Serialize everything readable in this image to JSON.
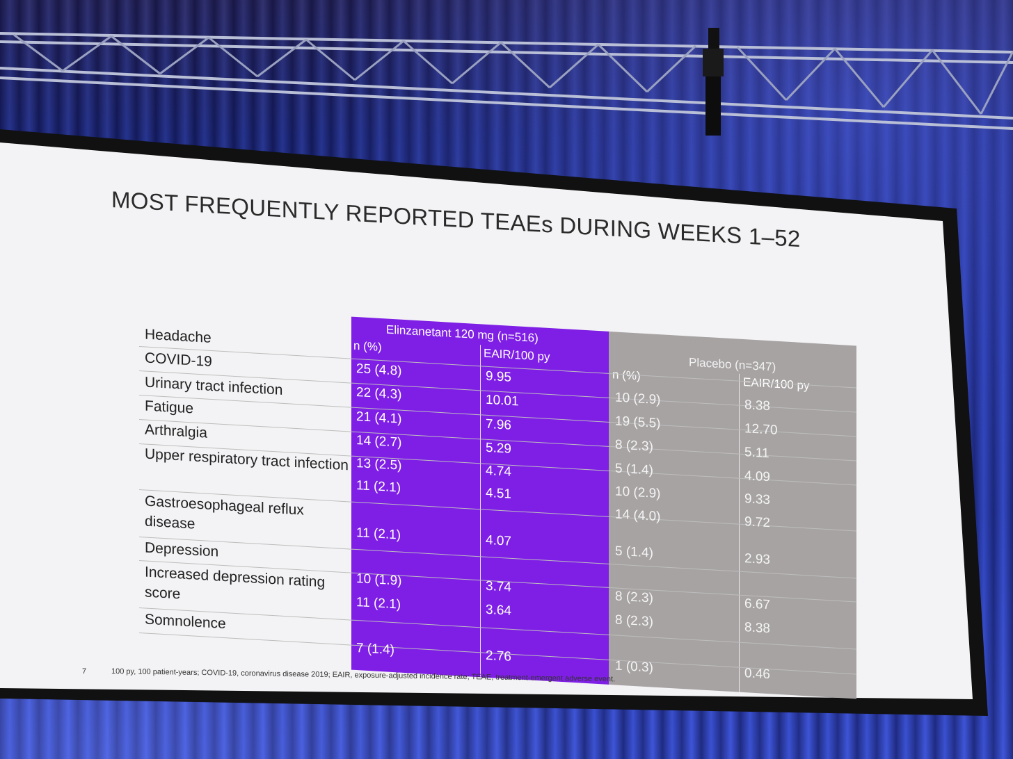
{
  "slide": {
    "title": "MOST FREQUENTLY REPORTED TEAEs DURING WEEKS 1–52",
    "slide_number": "7",
    "footnote": "100 py, 100 patient-years; COVID-19, coronavirus disease 2019; EAIR, exposure-adjusted incidence rate; TEAE, treatment-emergent adverse event."
  },
  "table": {
    "group_elinzanetant": "Elinzanetant 120 mg (n=516)",
    "group_placebo": "Placebo (n=347)",
    "col_n_pct": "n (%)",
    "col_eair": "EAIR/100 py",
    "rows": [
      {
        "event": "Headache",
        "elin_n": "25 (4.8)",
        "elin_eair": "9.95",
        "plac_n": "10 (2.9)",
        "plac_eair": "8.38"
      },
      {
        "event": "COVID-19",
        "elin_n": "22 (4.3)",
        "elin_eair": "10.01",
        "plac_n": "19 (5.5)",
        "plac_eair": "12.70"
      },
      {
        "event": "Urinary tract infection",
        "elin_n": "21 (4.1)",
        "elin_eair": "7.96",
        "plac_n": "8 (2.3)",
        "plac_eair": "5.11"
      },
      {
        "event": "Fatigue",
        "elin_n": "14 (2.7)",
        "elin_eair": "5.29",
        "plac_n": "5 (1.4)",
        "plac_eair": "4.09"
      },
      {
        "event": "Arthralgia",
        "elin_n": "13 (2.5)",
        "elin_eair": "4.74",
        "plac_n": "10 (2.9)",
        "plac_eair": "9.33"
      },
      {
        "event": "Upper respiratory tract infection",
        "elin_n": "11 (2.1)",
        "elin_eair": "4.51",
        "plac_n": "14 (4.0)",
        "plac_eair": "9.72"
      },
      {
        "event": "Gastroesophageal reflux disease",
        "elin_n": "11 (2.1)",
        "elin_eair": "4.07",
        "plac_n": "5 (1.4)",
        "plac_eair": "2.93"
      },
      {
        "event": "Depression",
        "elin_n": "10 (1.9)",
        "elin_eair": "3.74",
        "plac_n": "8 (2.3)",
        "plac_eair": "6.67"
      },
      {
        "event": "Increased depression rating score",
        "elin_n": "11 (2.1)",
        "elin_eair": "3.64",
        "plac_n": "8 (2.3)",
        "plac_eair": "8.38"
      },
      {
        "event": "Somnolence",
        "elin_n": "7 (1.4)",
        "elin_eair": "2.76",
        "plac_n": "1 (0.3)",
        "plac_eair": "0.46"
      }
    ]
  },
  "colors": {
    "elinzanetant_fill": "#7f1fe6",
    "placebo_fill": "#a8a3a3",
    "curtain": "#2438a8"
  }
}
